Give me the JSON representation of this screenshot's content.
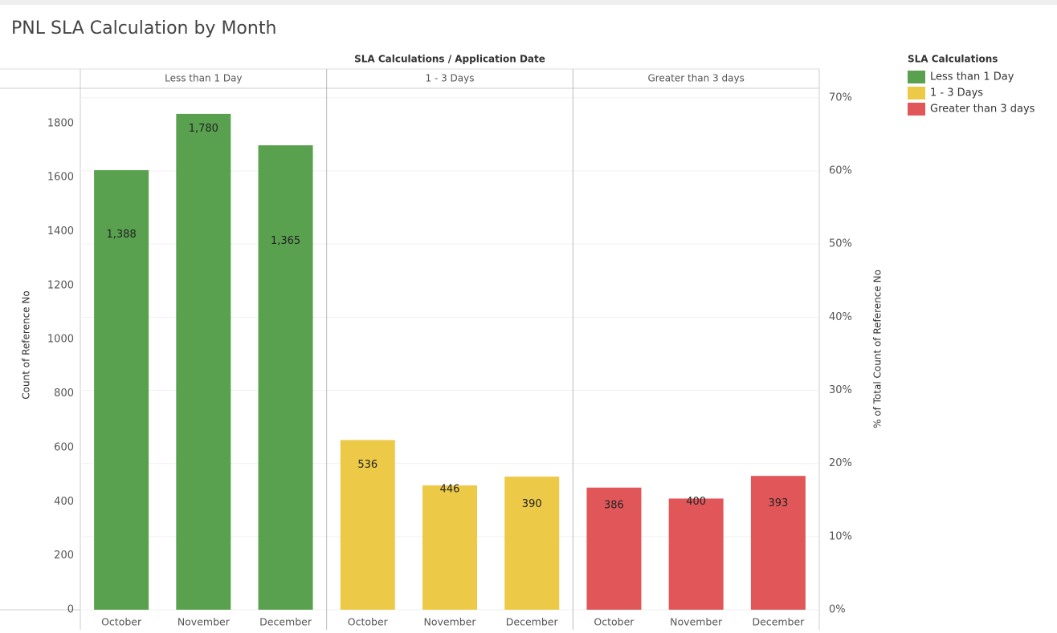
{
  "chart_data": {
    "type": "bar",
    "title": "PNL SLA Calculation by Month",
    "header": "SLA Calculations / Application Date",
    "ylabel": "Count of Reference No",
    "y2label": "% of Total Count of Reference No",
    "legend_title": "SLA Calculations",
    "legend": "right",
    "grid": true,
    "categories": [
      "October",
      "November",
      "December"
    ],
    "ylim": [
      0,
      1930
    ],
    "yticks": [
      0,
      200,
      400,
      600,
      800,
      1000,
      1200,
      1400,
      1600,
      1800
    ],
    "y2lim": [
      0,
      71.3
    ],
    "y2ticks": [
      {
        "value": 0,
        "label": "0%"
      },
      {
        "value": 10,
        "label": "10%"
      },
      {
        "value": 20,
        "label": "20%"
      },
      {
        "value": 30,
        "label": "30%"
      },
      {
        "value": 40,
        "label": "40%"
      },
      {
        "value": 50,
        "label": "50%"
      },
      {
        "value": 60,
        "label": "60%"
      },
      {
        "value": 70,
        "label": "70%"
      }
    ],
    "series": [
      {
        "name": "Less than 1 Day",
        "color": "#59a14f",
        "axis": "y2",
        "values": [
          60.1,
          67.8,
          63.5
        ],
        "counts": [
          1388,
          1780,
          1365
        ],
        "count_labels": [
          "1,388",
          "1,780",
          "1,365"
        ]
      },
      {
        "name": "1 - 3 Days",
        "color": "#edc948",
        "axis": "y2",
        "values": [
          23.2,
          17.0,
          18.2
        ],
        "counts": [
          536,
          446,
          390
        ],
        "count_labels": [
          "536",
          "446",
          "390"
        ]
      },
      {
        "name": "Greater than 3 days",
        "color": "#e15759",
        "axis": "y2",
        "values": [
          16.7,
          15.2,
          18.3
        ],
        "counts": [
          386,
          400,
          393
        ],
        "count_labels": [
          "386",
          "400",
          "393"
        ]
      }
    ]
  }
}
